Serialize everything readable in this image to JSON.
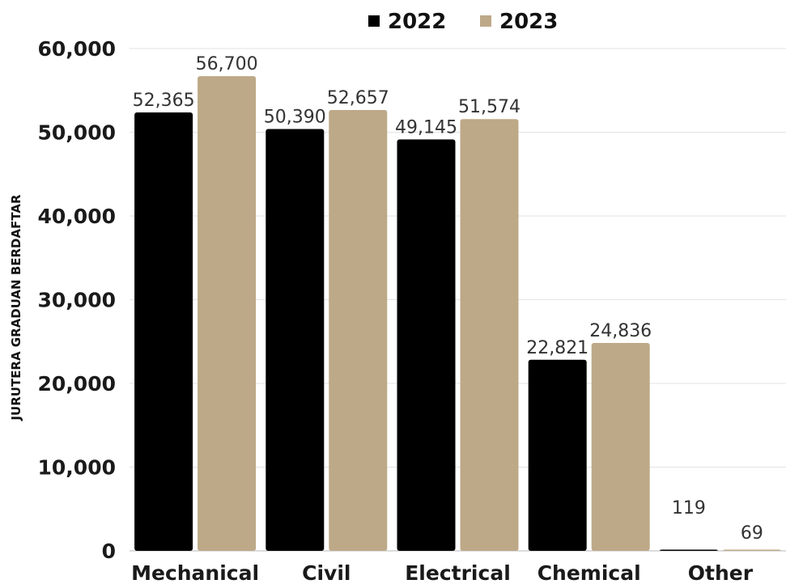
{
  "chart_data": {
    "type": "bar",
    "ylabel": "JURUTERA GRADUAN BERDAFTAR",
    "categories": [
      "Mechanical",
      "Civil",
      "Electrical",
      "Chemical",
      "Other"
    ],
    "series": [
      {
        "name": "2022",
        "color": "#000000",
        "values": [
          52365,
          50390,
          49145,
          22821,
          119
        ],
        "labels": [
          "52,365",
          "50,390",
          "49,145",
          "22,821",
          "119"
        ]
      },
      {
        "name": "2023",
        "color": "#bda987",
        "values": [
          56700,
          52657,
          51574,
          24836,
          69
        ],
        "labels": [
          "56,700",
          "52,657",
          "51,574",
          "24,836",
          "69"
        ]
      }
    ],
    "ylim": [
      0,
      60000
    ],
    "yticks": [
      0,
      10000,
      20000,
      30000,
      40000,
      50000,
      60000
    ],
    "ytick_labels": [
      "0",
      "10,000",
      "20,000",
      "30,000",
      "40,000",
      "50,000",
      "60,000"
    ],
    "grid": true,
    "legend_position": "top-center"
  }
}
